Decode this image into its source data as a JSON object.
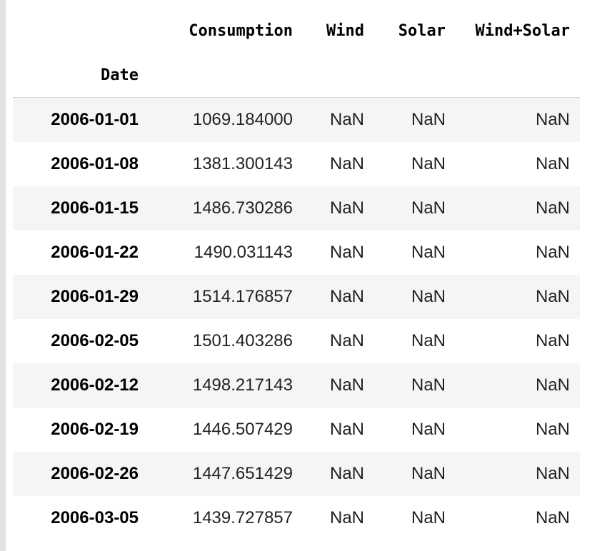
{
  "table": {
    "columns": [
      "Consumption",
      "Wind",
      "Solar",
      "Wind+Solar"
    ],
    "index_name": "Date",
    "rows": [
      {
        "date": "2006-01-01",
        "consumption": "1069.184000",
        "wind": "NaN",
        "solar": "NaN",
        "wind_solar": "NaN"
      },
      {
        "date": "2006-01-08",
        "consumption": "1381.300143",
        "wind": "NaN",
        "solar": "NaN",
        "wind_solar": "NaN"
      },
      {
        "date": "2006-01-15",
        "consumption": "1486.730286",
        "wind": "NaN",
        "solar": "NaN",
        "wind_solar": "NaN"
      },
      {
        "date": "2006-01-22",
        "consumption": "1490.031143",
        "wind": "NaN",
        "solar": "NaN",
        "wind_solar": "NaN"
      },
      {
        "date": "2006-01-29",
        "consumption": "1514.176857",
        "wind": "NaN",
        "solar": "NaN",
        "wind_solar": "NaN"
      },
      {
        "date": "2006-02-05",
        "consumption": "1501.403286",
        "wind": "NaN",
        "solar": "NaN",
        "wind_solar": "NaN"
      },
      {
        "date": "2006-02-12",
        "consumption": "1498.217143",
        "wind": "NaN",
        "solar": "NaN",
        "wind_solar": "NaN"
      },
      {
        "date": "2006-02-19",
        "consumption": "1446.507429",
        "wind": "NaN",
        "solar": "NaN",
        "wind_solar": "NaN"
      },
      {
        "date": "2006-02-26",
        "consumption": "1447.651429",
        "wind": "NaN",
        "solar": "NaN",
        "wind_solar": "NaN"
      },
      {
        "date": "2006-03-05",
        "consumption": "1439.727857",
        "wind": "NaN",
        "solar": "NaN",
        "wind_solar": "NaN"
      }
    ]
  }
}
